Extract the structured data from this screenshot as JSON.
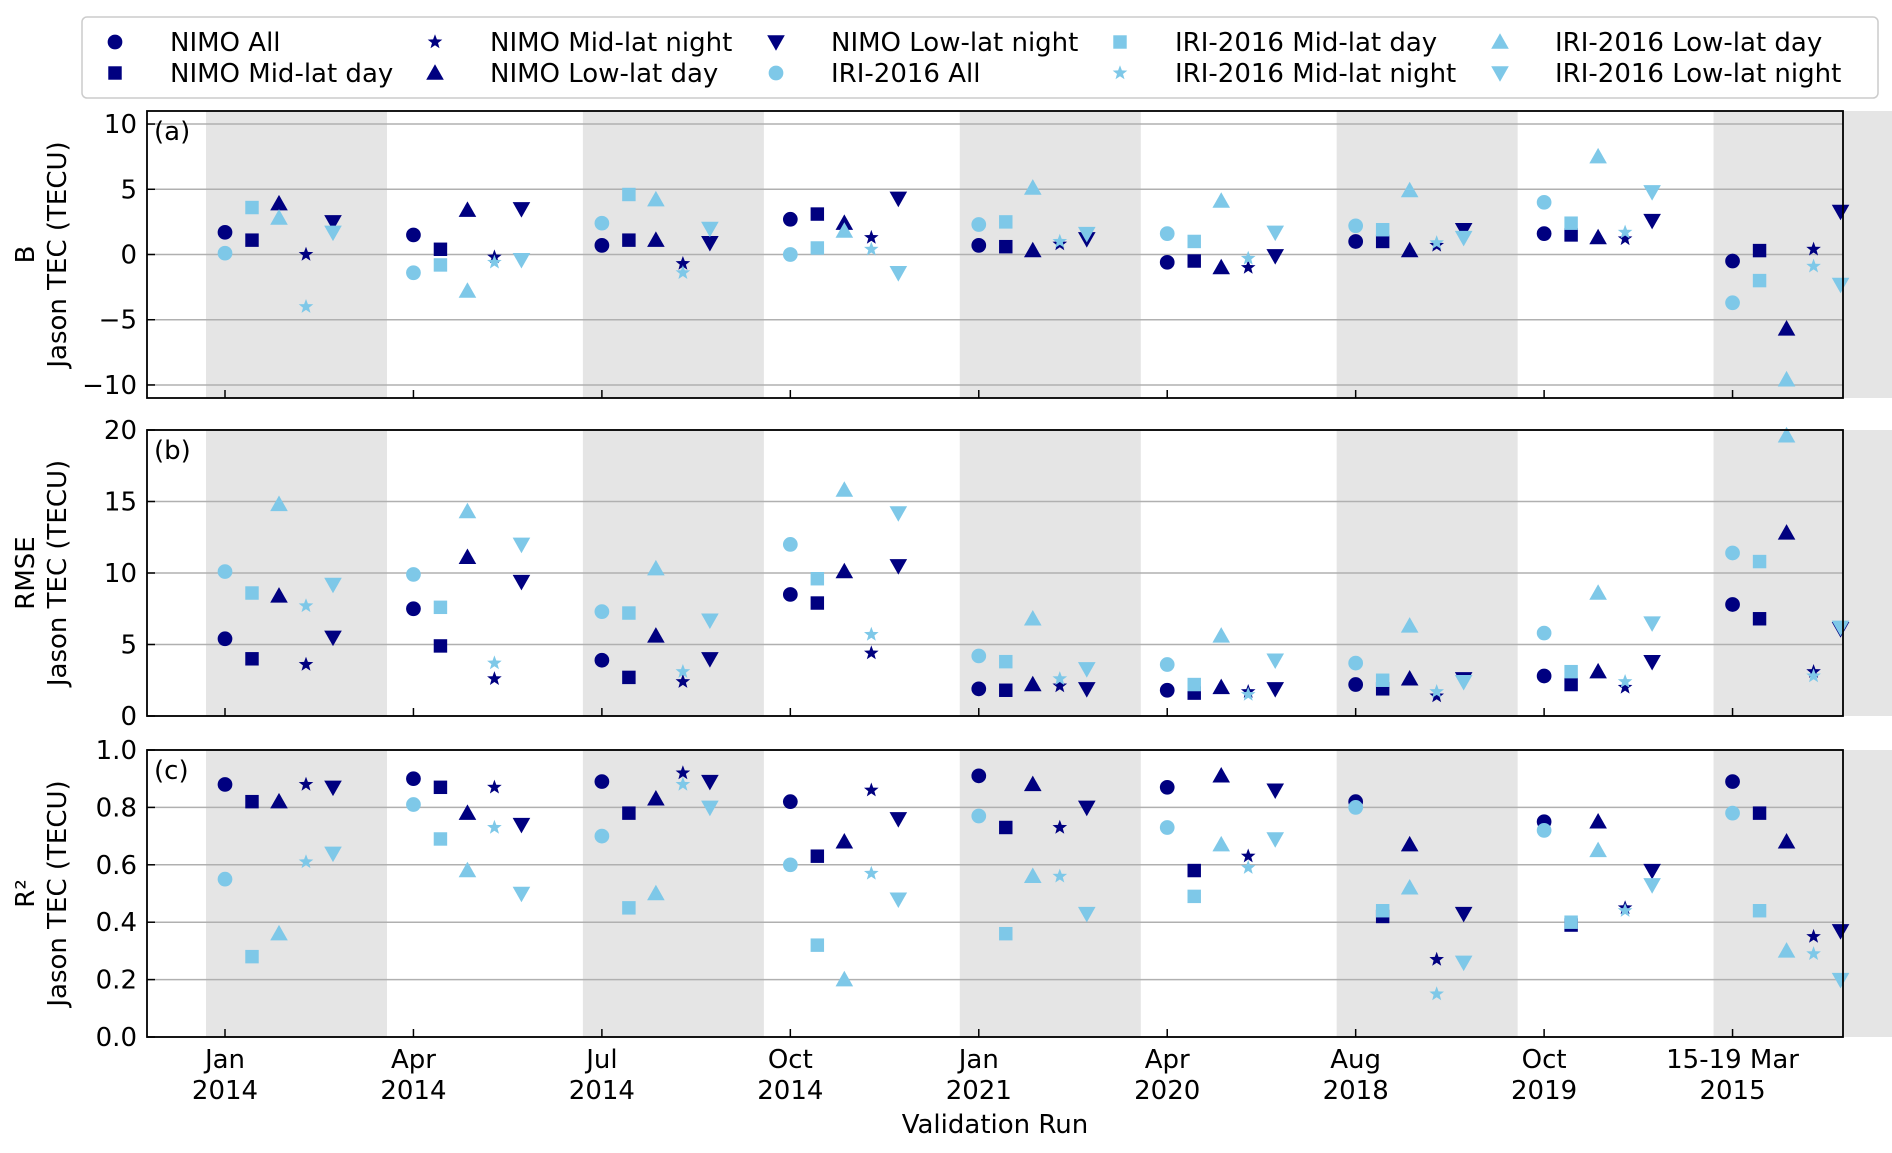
{
  "chart_data": {
    "type": "scatter",
    "xlabel": "Validation Run",
    "categories": [
      [
        "Jan",
        "2014"
      ],
      [
        "Apr",
        "2014"
      ],
      [
        "Jul",
        "2014"
      ],
      [
        "Oct",
        "2014"
      ],
      [
        "Jan",
        "2021"
      ],
      [
        "Apr",
        "2020"
      ],
      [
        "Aug",
        "2018"
      ],
      [
        "Oct",
        "2019"
      ],
      [
        "15-19 Mar",
        "2015"
      ]
    ],
    "shaded_categories": [
      0,
      2,
      4,
      6,
      8
    ],
    "grid": "horizontal",
    "legend_position": "top",
    "colors": {
      "nimo": "#000080",
      "iri": "#7ec8e8",
      "shade": "#e5e5e5"
    },
    "series": [
      {
        "name": "NIMO All",
        "marker": "circle",
        "color_key": "nimo",
        "offset": 0
      },
      {
        "name": "NIMO Mid-lat day",
        "marker": "square",
        "color_key": "nimo",
        "offset": 1
      },
      {
        "name": "NIMO Low-lat day",
        "marker": "triangle-up",
        "color_key": "nimo",
        "offset": 2
      },
      {
        "name": "NIMO Mid-lat night",
        "marker": "star",
        "color_key": "nimo",
        "offset": 3
      },
      {
        "name": "NIMO Low-lat night",
        "marker": "triangle-down",
        "color_key": "nimo",
        "offset": 4
      },
      {
        "name": "IRI-2016 All",
        "marker": "circle",
        "color_key": "iri",
        "offset": 0
      },
      {
        "name": "IRI-2016 Mid-lat day",
        "marker": "square",
        "color_key": "iri",
        "offset": 1
      },
      {
        "name": "IRI-2016 Low-lat day",
        "marker": "triangle-up",
        "color_key": "iri",
        "offset": 2
      },
      {
        "name": "IRI-2016 Mid-lat night",
        "marker": "star",
        "color_key": "iri",
        "offset": 3
      },
      {
        "name": "IRI-2016 Low-lat night",
        "marker": "triangle-down",
        "color_key": "iri",
        "offset": 4
      }
    ],
    "legend_layout": [
      [
        "NIMO All",
        "NIMO Mid-lat day"
      ],
      [
        "NIMO Mid-lat night",
        "NIMO Low-lat day"
      ],
      [
        "NIMO Low-lat night",
        "IRI-2016 All"
      ],
      [
        "IRI-2016 Mid-lat day",
        "IRI-2016 Mid-lat night"
      ],
      [
        "IRI-2016 Low-lat day",
        "IRI-2016 Low-lat night"
      ]
    ],
    "panels": [
      {
        "label": "(a)",
        "ylabel": [
          "B",
          "Jason TEC (TECU)"
        ],
        "ylim": [
          -11,
          11
        ],
        "yticks": [
          -10,
          -5,
          0,
          5,
          10
        ],
        "ytick_labels": [
          "−10",
          "−5",
          "0",
          "5",
          "10"
        ],
        "values": {
          "NIMO All": [
            1.7,
            1.5,
            0.7,
            2.7,
            0.7,
            -0.6,
            1.0,
            1.6,
            -0.5
          ],
          "NIMO Mid-lat day": [
            1.1,
            0.4,
            1.1,
            3.1,
            0.6,
            -0.5,
            1.0,
            1.5,
            0.3
          ],
          "NIMO Low-lat day": [
            3.9,
            3.4,
            1.1,
            2.4,
            0.3,
            -1.0,
            0.3,
            1.3,
            -5.7
          ],
          "NIMO Mid-lat night": [
            0.0,
            -0.2,
            -0.7,
            1.3,
            0.8,
            -1.0,
            0.7,
            1.2,
            0.4
          ],
          "NIMO Low-lat night": [
            2.5,
            3.5,
            0.9,
            4.3,
            1.2,
            -0.1,
            1.9,
            2.6,
            3.3
          ],
          "IRI-2016 All": [
            0.1,
            -1.4,
            2.4,
            0.0,
            2.3,
            1.6,
            2.2,
            4.0,
            -3.7
          ],
          "IRI-2016 Mid-lat day": [
            3.6,
            -0.8,
            4.6,
            0.5,
            2.5,
            1.0,
            1.9,
            2.4,
            -2.0
          ],
          "IRI-2016 Low-lat day": [
            2.8,
            -2.8,
            4.2,
            1.8,
            5.1,
            4.1,
            4.9,
            7.5,
            -9.6
          ],
          "IRI-2016 Mid-lat night": [
            -4.0,
            -0.6,
            -1.4,
            0.4,
            1.0,
            -0.3,
            0.9,
            1.7,
            -0.9
          ],
          "IRI-2016 Low-lat night": [
            1.7,
            -0.4,
            2.0,
            -1.4,
            1.6,
            1.7,
            1.3,
            4.8,
            -2.3
          ]
        }
      },
      {
        "label": "(b)",
        "ylabel": [
          "RMSE",
          "Jason TEC (TECU)"
        ],
        "ylim": [
          0,
          20
        ],
        "yticks": [
          0,
          5,
          10,
          15,
          20
        ],
        "ytick_labels": [
          "0",
          "5",
          "10",
          "15",
          "20"
        ],
        "values": {
          "NIMO All": [
            5.4,
            7.5,
            3.9,
            8.5,
            1.9,
            1.8,
            2.2,
            2.8,
            7.8
          ],
          "NIMO Mid-lat day": [
            4.0,
            4.9,
            2.7,
            7.9,
            1.8,
            1.6,
            1.9,
            2.2,
            6.8
          ],
          "NIMO Low-lat day": [
            8.4,
            11.1,
            5.6,
            10.1,
            2.2,
            2.0,
            2.6,
            3.1,
            12.8
          ],
          "NIMO Mid-lat night": [
            3.6,
            2.6,
            2.4,
            4.4,
            2.1,
            1.7,
            1.4,
            2.0,
            3.1
          ],
          "NIMO Low-lat night": [
            5.5,
            9.4,
            4.0,
            10.5,
            1.9,
            1.9,
            2.6,
            3.8,
            6.1
          ],
          "IRI-2016 All": [
            10.1,
            9.9,
            7.3,
            12.0,
            4.2,
            3.6,
            3.7,
            5.8,
            11.4
          ],
          "IRI-2016 Mid-lat day": [
            8.6,
            7.6,
            7.2,
            9.6,
            3.8,
            2.2,
            2.5,
            3.1,
            10.8
          ],
          "IRI-2016 Low-lat day": [
            14.8,
            14.3,
            10.3,
            15.8,
            6.8,
            5.6,
            6.3,
            8.6,
            19.6
          ],
          "IRI-2016 Mid-lat night": [
            7.7,
            3.7,
            3.1,
            5.7,
            2.6,
            1.5,
            1.7,
            2.4,
            2.8
          ],
          "IRI-2016 Low-lat night": [
            9.2,
            12.0,
            6.7,
            14.2,
            3.3,
            3.9,
            2.4,
            6.5,
            6.2
          ]
        }
      },
      {
        "label": "(c)",
        "ylabel": [
          "R²",
          "Jason TEC (TECU)"
        ],
        "ylim": [
          0,
          1
        ],
        "yticks": [
          0,
          0.2,
          0.4,
          0.6,
          0.8,
          1.0
        ],
        "ytick_labels": [
          "0.0",
          "0.2",
          "0.4",
          "0.6",
          "0.8",
          "1.0"
        ],
        "values": {
          "NIMO All": [
            0.88,
            0.9,
            0.89,
            0.82,
            0.91,
            0.87,
            0.82,
            0.75,
            0.89
          ],
          "NIMO Mid-lat day": [
            0.82,
            0.87,
            0.78,
            0.63,
            0.73,
            0.58,
            0.42,
            0.39,
            0.78
          ],
          "NIMO Low-lat day": [
            0.82,
            0.78,
            0.83,
            0.68,
            0.88,
            0.91,
            0.67,
            0.75,
            0.68
          ],
          "NIMO Mid-lat night": [
            0.88,
            0.87,
            0.92,
            0.86,
            0.73,
            0.63,
            0.27,
            0.45,
            0.35
          ],
          "NIMO Low-lat night": [
            0.87,
            0.74,
            0.89,
            0.76,
            0.8,
            0.86,
            0.43,
            0.58,
            0.37
          ],
          "IRI-2016 All": [
            0.55,
            0.81,
            0.7,
            0.6,
            0.77,
            0.73,
            0.8,
            0.72,
            0.78
          ],
          "IRI-2016 Mid-lat day": [
            0.28,
            0.69,
            0.45,
            0.32,
            0.36,
            0.49,
            0.44,
            0.4,
            0.44
          ],
          "IRI-2016 Low-lat day": [
            0.36,
            0.58,
            0.5,
            0.2,
            0.56,
            0.67,
            0.52,
            0.65,
            0.3
          ],
          "IRI-2016 Mid-lat night": [
            0.61,
            0.73,
            0.88,
            0.57,
            0.56,
            0.59,
            0.15,
            0.44,
            0.29
          ],
          "IRI-2016 Low-lat night": [
            0.64,
            0.5,
            0.8,
            0.48,
            0.43,
            0.69,
            0.26,
            0.53,
            0.2
          ]
        }
      }
    ]
  }
}
